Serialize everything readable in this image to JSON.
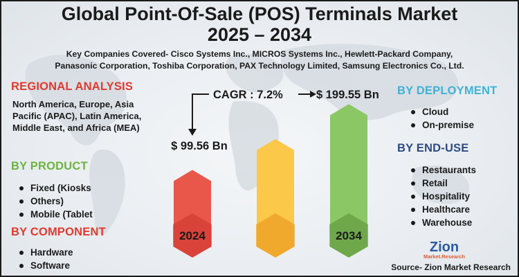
{
  "title_line1": "Global Point-Of-Sale (POS) Terminals Market",
  "title_line2": "2025 – 2034",
  "companies_line1": "Key Companies Covered- Cisco Systems Inc., MICROS Systems Inc., Hewlett-Packard Company,",
  "companies_line2": "Panasonic Corporation, Toshiba Corporation, PAX Technology Limited, Samsung Electronics Co., Ltd.",
  "regional": {
    "heading": "REGIONAL ANALYSIS",
    "text": "North America, Europe, Asia Pacific (APAC), Latin America, Middle East, and Africa (MEA)"
  },
  "product": {
    "heading": "BY PRODUCT",
    "items": [
      "Fixed (Kiosks",
      "Others)",
      "Mobile (Tablet"
    ]
  },
  "component": {
    "heading": "BY COMPONENT",
    "items": [
      "Hardware",
      "Software"
    ]
  },
  "deployment": {
    "heading": "BY DEPLOYMENT",
    "items": [
      "Cloud",
      "On-premise"
    ]
  },
  "end_use": {
    "heading": "BY END-USE",
    "items": [
      "Restaurants",
      "Retail",
      "Hospitality",
      "Healthcare",
      "Warehouse"
    ]
  },
  "cagr_label": "CAGR : 7.2%",
  "logo": {
    "word": "Zion",
    "sub": "Market.Research"
  },
  "source": "Source- Zion Market Research",
  "colors": {
    "bar_2024": "#e8574a",
    "bar_mid": "#fbc84a",
    "bar_2034": "#8cc765",
    "hex_2024": "#d9433a",
    "hex_mid": "#f0a92c",
    "hex_2034": "#6fa84a"
  },
  "chart_data": {
    "type": "bar",
    "categories": [
      "2024",
      "",
      "2034"
    ],
    "values": [
      99.56,
      null,
      199.55
    ],
    "value_labels": [
      "$ 99.56 Bn",
      "",
      "$ 199.55 Bn"
    ],
    "cagr": "CAGR : 7.2%"
  }
}
